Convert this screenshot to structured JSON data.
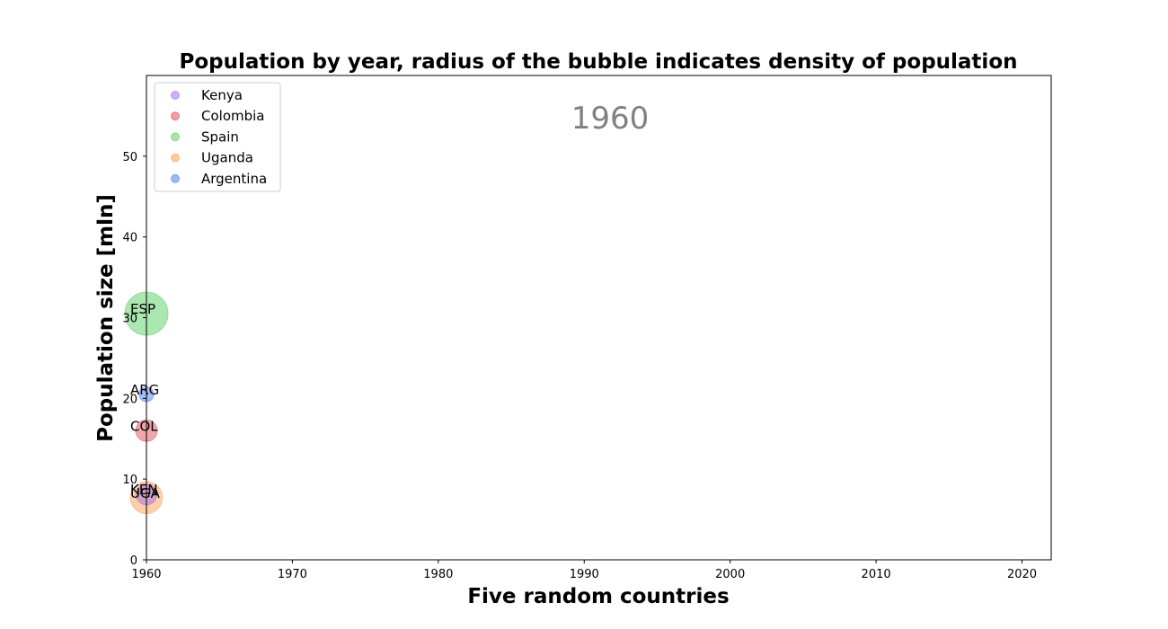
{
  "chart_data": {
    "type": "scatter",
    "title": "Population by year, radius of the bubble indicates density of population",
    "xlabel": "Five random countries",
    "ylabel": "Population size [mln]",
    "year_annotation": "1960",
    "xlim": [
      1960,
      2022
    ],
    "ylim": [
      0,
      60
    ],
    "xticks": [
      1960,
      1970,
      1980,
      1990,
      2000,
      2010,
      2020
    ],
    "yticks": [
      0,
      10,
      20,
      30,
      40,
      50
    ],
    "grid": false,
    "legend_position": "top-left",
    "series": [
      {
        "name": "Kenya",
        "code": "KEN",
        "color": "#a66ee8",
        "x": 1960,
        "y": 8.1,
        "density": 14
      },
      {
        "name": "Colombia",
        "code": "COL",
        "color": "#e0505a",
        "x": 1960,
        "y": 16.0,
        "density": 15
      },
      {
        "name": "Spain",
        "code": "ESP",
        "color": "#5ad066",
        "x": 1960,
        "y": 30.5,
        "density": 60
      },
      {
        "name": "Uganda",
        "code": "UGA",
        "color": "#f9a050",
        "x": 1960,
        "y": 7.7,
        "density": 33
      },
      {
        "name": "Argentina",
        "code": "ARG",
        "color": "#4a80ee",
        "x": 1960,
        "y": 20.5,
        "density": 7
      }
    ]
  }
}
